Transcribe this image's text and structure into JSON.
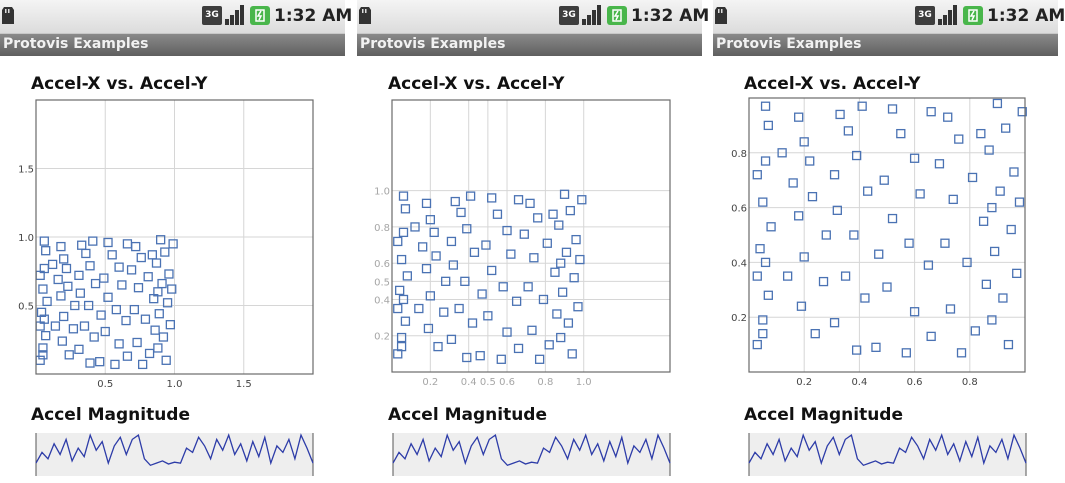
{
  "status_bar": {
    "time": "1:32 AM",
    "network_label": "3G"
  },
  "app": {
    "title": "Protovis Examples"
  },
  "charts": {
    "scatter_title": "Accel-X vs. Accel-Y",
    "magnitude_title": "Accel Magnitude"
  },
  "colors": {
    "marker": "#4a72b3",
    "grid": "#d6d6d6",
    "frame": "#6a6a6a",
    "tick_label_dark": "#444444",
    "tick_label_light": "#a6a6a6",
    "magnitude_line": "#2d3ca8",
    "magnitude_background": "#eeeeee"
  },
  "chart_data": [
    {
      "type": "scatter",
      "title": "Accel-X vs. Accel-Y",
      "xlim": [
        0,
        2.0
      ],
      "ylim": [
        0,
        2.0
      ],
      "x_ticks": [
        "0.5",
        "1.0",
        "1.5"
      ],
      "y_ticks": [
        "0.5",
        "1.0",
        "1.5"
      ],
      "grid": true,
      "points": [
        [
          0.06,
          0.97
        ],
        [
          0.07,
          0.9
        ],
        [
          0.06,
          0.77
        ],
        [
          0.03,
          0.72
        ],
        [
          0.05,
          0.62
        ],
        [
          0.08,
          0.53
        ],
        [
          0.04,
          0.45
        ],
        [
          0.06,
          0.4
        ],
        [
          0.03,
          0.35
        ],
        [
          0.07,
          0.28
        ],
        [
          0.05,
          0.19
        ],
        [
          0.05,
          0.14
        ],
        [
          0.03,
          0.1
        ],
        [
          0.18,
          0.93
        ],
        [
          0.2,
          0.84
        ],
        [
          0.22,
          0.77
        ],
        [
          0.16,
          0.69
        ],
        [
          0.23,
          0.64
        ],
        [
          0.18,
          0.57
        ],
        [
          0.28,
          0.5
        ],
        [
          0.2,
          0.42
        ],
        [
          0.27,
          0.33
        ],
        [
          0.19,
          0.24
        ],
        [
          0.24,
          0.14
        ],
        [
          0.33,
          0.94
        ],
        [
          0.36,
          0.88
        ],
        [
          0.39,
          0.79
        ],
        [
          0.31,
          0.72
        ],
        [
          0.43,
          0.66
        ],
        [
          0.32,
          0.59
        ],
        [
          0.38,
          0.5
        ],
        [
          0.47,
          0.43
        ],
        [
          0.35,
          0.35
        ],
        [
          0.42,
          0.27
        ],
        [
          0.31,
          0.18
        ],
        [
          0.46,
          0.09
        ],
        [
          0.52,
          0.96
        ],
        [
          0.55,
          0.87
        ],
        [
          0.6,
          0.78
        ],
        [
          0.49,
          0.7
        ],
        [
          0.62,
          0.65
        ],
        [
          0.52,
          0.56
        ],
        [
          0.58,
          0.47
        ],
        [
          0.65,
          0.39
        ],
        [
          0.5,
          0.31
        ],
        [
          0.6,
          0.22
        ],
        [
          0.66,
          0.13
        ],
        [
          0.72,
          0.93
        ],
        [
          0.76,
          0.85
        ],
        [
          0.69,
          0.76
        ],
        [
          0.81,
          0.71
        ],
        [
          0.74,
          0.63
        ],
        [
          0.85,
          0.55
        ],
        [
          0.71,
          0.47
        ],
        [
          0.79,
          0.4
        ],
        [
          0.86,
          0.32
        ],
        [
          0.73,
          0.23
        ],
        [
          0.82,
          0.15
        ],
        [
          0.77,
          0.07
        ],
        [
          0.9,
          0.98
        ],
        [
          0.93,
          0.89
        ],
        [
          0.87,
          0.81
        ],
        [
          0.96,
          0.73
        ],
        [
          0.91,
          0.66
        ],
        [
          0.88,
          0.6
        ],
        [
          0.95,
          0.52
        ],
        [
          0.89,
          0.44
        ],
        [
          0.97,
          0.36
        ],
        [
          0.92,
          0.27
        ],
        [
          0.88,
          0.19
        ],
        [
          0.94,
          0.1
        ],
        [
          0.99,
          0.95
        ],
        [
          0.98,
          0.62
        ],
        [
          0.84,
          0.87
        ],
        [
          0.66,
          0.95
        ],
        [
          0.41,
          0.97
        ],
        [
          0.12,
          0.8
        ],
        [
          0.14,
          0.35
        ],
        [
          0.57,
          0.07
        ],
        [
          0.39,
          0.08
        ]
      ]
    },
    {
      "type": "scatter",
      "title": "Accel-X vs. Accel-Y",
      "xlim": [
        0,
        1.45
      ],
      "ylim": [
        0,
        1.5
      ],
      "x_ticks": [
        "0.2",
        "0.4",
        "0.5",
        "0.6",
        "0.8",
        "1.0"
      ],
      "y_ticks": [
        "0.2",
        "0.4",
        "0.5",
        "0.6",
        "0.8",
        "1.0"
      ],
      "scale": "log",
      "grid": true,
      "points": [
        [
          0.06,
          0.97
        ],
        [
          0.07,
          0.9
        ],
        [
          0.06,
          0.77
        ],
        [
          0.03,
          0.72
        ],
        [
          0.05,
          0.62
        ],
        [
          0.08,
          0.53
        ],
        [
          0.04,
          0.45
        ],
        [
          0.06,
          0.4
        ],
        [
          0.03,
          0.35
        ],
        [
          0.07,
          0.28
        ],
        [
          0.05,
          0.19
        ],
        [
          0.05,
          0.14
        ],
        [
          0.03,
          0.1
        ],
        [
          0.18,
          0.93
        ],
        [
          0.2,
          0.84
        ],
        [
          0.22,
          0.77
        ],
        [
          0.16,
          0.69
        ],
        [
          0.23,
          0.64
        ],
        [
          0.18,
          0.57
        ],
        [
          0.28,
          0.5
        ],
        [
          0.2,
          0.42
        ],
        [
          0.27,
          0.33
        ],
        [
          0.19,
          0.24
        ],
        [
          0.24,
          0.14
        ],
        [
          0.33,
          0.94
        ],
        [
          0.36,
          0.88
        ],
        [
          0.39,
          0.79
        ],
        [
          0.31,
          0.72
        ],
        [
          0.43,
          0.66
        ],
        [
          0.32,
          0.59
        ],
        [
          0.38,
          0.5
        ],
        [
          0.47,
          0.43
        ],
        [
          0.35,
          0.35
        ],
        [
          0.42,
          0.27
        ],
        [
          0.31,
          0.18
        ],
        [
          0.46,
          0.09
        ],
        [
          0.52,
          0.96
        ],
        [
          0.55,
          0.87
        ],
        [
          0.6,
          0.78
        ],
        [
          0.49,
          0.7
        ],
        [
          0.62,
          0.65
        ],
        [
          0.52,
          0.56
        ],
        [
          0.58,
          0.47
        ],
        [
          0.65,
          0.39
        ],
        [
          0.5,
          0.31
        ],
        [
          0.6,
          0.22
        ],
        [
          0.66,
          0.13
        ],
        [
          0.72,
          0.93
        ],
        [
          0.76,
          0.85
        ],
        [
          0.69,
          0.76
        ],
        [
          0.81,
          0.71
        ],
        [
          0.74,
          0.63
        ],
        [
          0.85,
          0.55
        ],
        [
          0.71,
          0.47
        ],
        [
          0.79,
          0.4
        ],
        [
          0.86,
          0.32
        ],
        [
          0.73,
          0.23
        ],
        [
          0.82,
          0.15
        ],
        [
          0.77,
          0.07
        ],
        [
          0.9,
          0.98
        ],
        [
          0.93,
          0.89
        ],
        [
          0.87,
          0.81
        ],
        [
          0.96,
          0.73
        ],
        [
          0.91,
          0.66
        ],
        [
          0.88,
          0.6
        ],
        [
          0.95,
          0.52
        ],
        [
          0.89,
          0.44
        ],
        [
          0.97,
          0.36
        ],
        [
          0.92,
          0.27
        ],
        [
          0.88,
          0.19
        ],
        [
          0.94,
          0.1
        ],
        [
          0.99,
          0.95
        ],
        [
          0.98,
          0.62
        ],
        [
          0.84,
          0.87
        ],
        [
          0.66,
          0.95
        ],
        [
          0.41,
          0.97
        ],
        [
          0.12,
          0.8
        ],
        [
          0.14,
          0.35
        ],
        [
          0.57,
          0.07
        ],
        [
          0.39,
          0.08
        ]
      ]
    },
    {
      "type": "scatter",
      "title": "Accel-X vs. Accel-Y",
      "xlim": [
        0,
        1.0
      ],
      "ylim": [
        0,
        1.0
      ],
      "x_ticks": [
        "0.2",
        "0.4",
        "0.6",
        "0.8"
      ],
      "y_ticks": [
        "0.2",
        "0.4",
        "0.6",
        "0.8"
      ],
      "grid": true,
      "points": [
        [
          0.06,
          0.97
        ],
        [
          0.07,
          0.9
        ],
        [
          0.06,
          0.77
        ],
        [
          0.03,
          0.72
        ],
        [
          0.05,
          0.62
        ],
        [
          0.08,
          0.53
        ],
        [
          0.04,
          0.45
        ],
        [
          0.06,
          0.4
        ],
        [
          0.03,
          0.35
        ],
        [
          0.07,
          0.28
        ],
        [
          0.05,
          0.19
        ],
        [
          0.05,
          0.14
        ],
        [
          0.03,
          0.1
        ],
        [
          0.18,
          0.93
        ],
        [
          0.2,
          0.84
        ],
        [
          0.22,
          0.77
        ],
        [
          0.16,
          0.69
        ],
        [
          0.23,
          0.64
        ],
        [
          0.18,
          0.57
        ],
        [
          0.28,
          0.5
        ],
        [
          0.2,
          0.42
        ],
        [
          0.27,
          0.33
        ],
        [
          0.19,
          0.24
        ],
        [
          0.24,
          0.14
        ],
        [
          0.33,
          0.94
        ],
        [
          0.36,
          0.88
        ],
        [
          0.39,
          0.79
        ],
        [
          0.31,
          0.72
        ],
        [
          0.43,
          0.66
        ],
        [
          0.32,
          0.59
        ],
        [
          0.38,
          0.5
        ],
        [
          0.47,
          0.43
        ],
        [
          0.35,
          0.35
        ],
        [
          0.42,
          0.27
        ],
        [
          0.31,
          0.18
        ],
        [
          0.46,
          0.09
        ],
        [
          0.52,
          0.96
        ],
        [
          0.55,
          0.87
        ],
        [
          0.6,
          0.78
        ],
        [
          0.49,
          0.7
        ],
        [
          0.62,
          0.65
        ],
        [
          0.52,
          0.56
        ],
        [
          0.58,
          0.47
        ],
        [
          0.65,
          0.39
        ],
        [
          0.5,
          0.31
        ],
        [
          0.6,
          0.22
        ],
        [
          0.66,
          0.13
        ],
        [
          0.72,
          0.93
        ],
        [
          0.76,
          0.85
        ],
        [
          0.69,
          0.76
        ],
        [
          0.81,
          0.71
        ],
        [
          0.74,
          0.63
        ],
        [
          0.85,
          0.55
        ],
        [
          0.71,
          0.47
        ],
        [
          0.79,
          0.4
        ],
        [
          0.86,
          0.32
        ],
        [
          0.73,
          0.23
        ],
        [
          0.82,
          0.15
        ],
        [
          0.77,
          0.07
        ],
        [
          0.9,
          0.98
        ],
        [
          0.93,
          0.89
        ],
        [
          0.87,
          0.81
        ],
        [
          0.96,
          0.73
        ],
        [
          0.91,
          0.66
        ],
        [
          0.88,
          0.6
        ],
        [
          0.95,
          0.52
        ],
        [
          0.89,
          0.44
        ],
        [
          0.97,
          0.36
        ],
        [
          0.92,
          0.27
        ],
        [
          0.88,
          0.19
        ],
        [
          0.94,
          0.1
        ],
        [
          0.99,
          0.95
        ],
        [
          0.98,
          0.62
        ],
        [
          0.84,
          0.87
        ],
        [
          0.66,
          0.95
        ],
        [
          0.41,
          0.97
        ],
        [
          0.12,
          0.8
        ],
        [
          0.14,
          0.35
        ],
        [
          0.57,
          0.07
        ],
        [
          0.39,
          0.08
        ]
      ]
    },
    {
      "type": "line",
      "title": "Accel Magnitude",
      "ylim": [
        0,
        1
      ],
      "values": [
        0.3,
        0.55,
        0.4,
        0.75,
        0.5,
        0.85,
        0.35,
        0.65,
        0.45,
        0.95,
        0.6,
        0.8,
        0.3,
        0.7,
        0.9,
        0.5,
        0.85,
        0.95,
        0.4,
        0.25,
        0.3,
        0.35,
        0.28,
        0.32,
        0.3,
        0.65,
        0.55,
        0.9,
        0.7,
        0.4,
        0.85,
        0.6,
        0.95,
        0.5,
        0.75,
        0.35,
        0.8,
        0.45,
        0.9,
        0.3,
        0.7,
        0.55,
        0.85,
        0.4,
        0.95,
        0.65,
        0.3
      ]
    }
  ]
}
